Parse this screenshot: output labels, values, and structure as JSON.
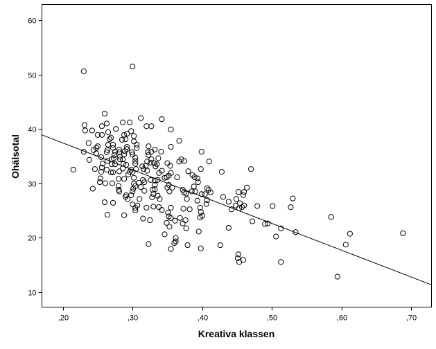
{
  "chart_data": {
    "type": "scatter",
    "title": "",
    "xlabel": "Kreativa klassen",
    "ylabel": "Ohälsotal",
    "xlim": [
      0.17,
      0.729
    ],
    "ylim": [
      7.2,
      62.9
    ],
    "xticks": [
      0.2,
      0.3,
      0.4,
      0.5,
      0.6,
      0.7
    ],
    "xtick_labels": [
      ",20",
      ",30",
      ",40",
      ",50",
      ",60",
      ",70"
    ],
    "yticks": [
      10,
      20,
      30,
      40,
      50,
      60
    ],
    "ytick_labels": [
      "10",
      "20",
      "30",
      "40",
      "50",
      "60"
    ],
    "grid": false,
    "fit_line": {
      "x": [
        0.17,
        0.729
      ],
      "y": [
        38.9,
        11.3
      ]
    },
    "points": [
      [
        0.23,
        50.6
      ],
      [
        0.3,
        51.5
      ],
      [
        0.26,
        42.8
      ],
      [
        0.231,
        40.7
      ],
      [
        0.232,
        39.7
      ],
      [
        0.242,
        39.7
      ],
      [
        0.256,
        40.5
      ],
      [
        0.263,
        41.0
      ],
      [
        0.276,
        40.0
      ],
      [
        0.286,
        41.2
      ],
      [
        0.296,
        41.2
      ],
      [
        0.312,
        42.0
      ],
      [
        0.32,
        40.5
      ],
      [
        0.327,
        40.5
      ],
      [
        0.342,
        41.8
      ],
      [
        0.355,
        39.9
      ],
      [
        0.25,
        38.9
      ],
      [
        0.256,
        38.9
      ],
      [
        0.265,
        39.4
      ],
      [
        0.267,
        38.1
      ],
      [
        0.269,
        38.4
      ],
      [
        0.237,
        37.4
      ],
      [
        0.25,
        36.8
      ],
      [
        0.248,
        36.5
      ],
      [
        0.244,
        36.1
      ],
      [
        0.248,
        35.5
      ],
      [
        0.23,
        35.8
      ],
      [
        0.238,
        34.3
      ],
      [
        0.255,
        34.8
      ],
      [
        0.265,
        37.1
      ],
      [
        0.272,
        37.1
      ],
      [
        0.264,
        36.1
      ],
      [
        0.263,
        35.7
      ],
      [
        0.272,
        36.5
      ],
      [
        0.275,
        35.8
      ],
      [
        0.274,
        35.2
      ],
      [
        0.273,
        34.6
      ],
      [
        0.27,
        34.4
      ],
      [
        0.264,
        34.1
      ],
      [
        0.257,
        33.6
      ],
      [
        0.256,
        32.9
      ],
      [
        0.255,
        32.1
      ],
      [
        0.263,
        32.5
      ],
      [
        0.269,
        32.0
      ],
      [
        0.272,
        32.0
      ],
      [
        0.27,
        33.5
      ],
      [
        0.275,
        33.5
      ],
      [
        0.246,
        32.6
      ],
      [
        0.215,
        32.5
      ],
      [
        0.254,
        30.9
      ],
      [
        0.253,
        30.2
      ],
      [
        0.261,
        30.0
      ],
      [
        0.271,
        30.0
      ],
      [
        0.243,
        29.0
      ],
      [
        0.26,
        26.5
      ],
      [
        0.272,
        26.4
      ],
      [
        0.264,
        24.2
      ],
      [
        0.288,
        24.1
      ],
      [
        0.28,
        30.8
      ],
      [
        0.28,
        29.5
      ],
      [
        0.28,
        28.8
      ],
      [
        0.281,
        28.5
      ],
      [
        0.281,
        36.2
      ],
      [
        0.281,
        35.7
      ],
      [
        0.282,
        34.9
      ],
      [
        0.282,
        34.4
      ],
      [
        0.281,
        32.2
      ],
      [
        0.285,
        38.0
      ],
      [
        0.288,
        38.9
      ],
      [
        0.292,
        39.1
      ],
      [
        0.29,
        38.1
      ],
      [
        0.292,
        36.7
      ],
      [
        0.292,
        36.3
      ],
      [
        0.286,
        34.4
      ],
      [
        0.288,
        35.3
      ],
      [
        0.289,
        35.9
      ],
      [
        0.287,
        33.6
      ],
      [
        0.291,
        33.4
      ],
      [
        0.286,
        32.7
      ],
      [
        0.288,
        30.8
      ],
      [
        0.294,
        31.6
      ],
      [
        0.296,
        32.1
      ],
      [
        0.298,
        32.5
      ],
      [
        0.29,
        27.5
      ],
      [
        0.293,
        27.1
      ],
      [
        0.291,
        27.8
      ],
      [
        0.298,
        39.6
      ],
      [
        0.302,
        38.7
      ],
      [
        0.302,
        37.7
      ],
      [
        0.306,
        37.1
      ],
      [
        0.306,
        36.5
      ],
      [
        0.299,
        35.7
      ],
      [
        0.3,
        35.3
      ],
      [
        0.304,
        34.7
      ],
      [
        0.304,
        34.1
      ],
      [
        0.304,
        33.6
      ],
      [
        0.305,
        32.6
      ],
      [
        0.3,
        32.1
      ],
      [
        0.302,
        31.0
      ],
      [
        0.302,
        29.9
      ],
      [
        0.304,
        29.5
      ],
      [
        0.301,
        29.0
      ],
      [
        0.3,
        28.5
      ],
      [
        0.298,
        27.8
      ],
      [
        0.3,
        26.1
      ],
      [
        0.304,
        25.5
      ],
      [
        0.304,
        25.0
      ],
      [
        0.307,
        25.9
      ],
      [
        0.31,
        27.1
      ],
      [
        0.309,
        30.1
      ],
      [
        0.312,
        29.3
      ],
      [
        0.315,
        30.6
      ],
      [
        0.317,
        30.2
      ],
      [
        0.317,
        28.6
      ],
      [
        0.314,
        33.1
      ],
      [
        0.316,
        32.6
      ],
      [
        0.319,
        33.2
      ],
      [
        0.321,
        32.3
      ],
      [
        0.322,
        35.7
      ],
      [
        0.323,
        35.2
      ],
      [
        0.323,
        36.8
      ],
      [
        0.327,
        35.8
      ],
      [
        0.327,
        34.4
      ],
      [
        0.326,
        33.8
      ],
      [
        0.321,
        34.0
      ],
      [
        0.32,
        25.5
      ],
      [
        0.315,
        23.5
      ],
      [
        0.325,
        23.2
      ],
      [
        0.323,
        18.8
      ],
      [
        0.326,
        30.6
      ],
      [
        0.329,
        28.8
      ],
      [
        0.328,
        27.4
      ],
      [
        0.33,
        28.0
      ],
      [
        0.33,
        25.7
      ],
      [
        0.332,
        36.2
      ],
      [
        0.331,
        33.7
      ],
      [
        0.333,
        33.1
      ],
      [
        0.335,
        33.5
      ],
      [
        0.337,
        34.6
      ],
      [
        0.338,
        31.9
      ],
      [
        0.336,
        30.6
      ],
      [
        0.332,
        30.5
      ],
      [
        0.332,
        29.7
      ],
      [
        0.332,
        28.9
      ],
      [
        0.336,
        27.7
      ],
      [
        0.339,
        27.1
      ],
      [
        0.338,
        25.6
      ],
      [
        0.342,
        25.1
      ],
      [
        0.342,
        32.3
      ],
      [
        0.341,
        35.8
      ],
      [
        0.346,
        31.0
      ],
      [
        0.349,
        31.1
      ],
      [
        0.352,
        31.4
      ],
      [
        0.355,
        31.9
      ],
      [
        0.35,
        33.7
      ],
      [
        0.354,
        33.2
      ],
      [
        0.352,
        29.7
      ],
      [
        0.35,
        29.2
      ],
      [
        0.357,
        29.2
      ],
      [
        0.353,
        28.5
      ],
      [
        0.355,
        25.5
      ],
      [
        0.351,
        24.6
      ],
      [
        0.352,
        23.9
      ],
      [
        0.355,
        23.6
      ],
      [
        0.349,
        22.7
      ],
      [
        0.353,
        22.0
      ],
      [
        0.346,
        20.6
      ],
      [
        0.355,
        17.9
      ],
      [
        0.355,
        36.7
      ],
      [
        0.361,
        23.1
      ],
      [
        0.362,
        19.9
      ],
      [
        0.362,
        19.3
      ],
      [
        0.36,
        19.0
      ],
      [
        0.364,
        31.1
      ],
      [
        0.367,
        34.0
      ],
      [
        0.367,
        37.8
      ],
      [
        0.37,
        34.4
      ],
      [
        0.374,
        34.1
      ],
      [
        0.372,
        28.8
      ],
      [
        0.374,
        28.3
      ],
      [
        0.377,
        28.1
      ],
      [
        0.378,
        27.1
      ],
      [
        0.373,
        25.3
      ],
      [
        0.368,
        23.6
      ],
      [
        0.372,
        22.6
      ],
      [
        0.376,
        23.2
      ],
      [
        0.377,
        21.7
      ],
      [
        0.379,
        18.6
      ],
      [
        0.38,
        32.2
      ],
      [
        0.382,
        25.2
      ],
      [
        0.385,
        28.5
      ],
      [
        0.386,
        31.5
      ],
      [
        0.389,
        31.1
      ],
      [
        0.388,
        29.4
      ],
      [
        0.39,
        28.5
      ],
      [
        0.393,
        26.8
      ],
      [
        0.393,
        30.9
      ],
      [
        0.394,
        30.2
      ],
      [
        0.395,
        21.1
      ],
      [
        0.398,
        32.6
      ],
      [
        0.399,
        35.8
      ],
      [
        0.399,
        28.0
      ],
      [
        0.397,
        25.5
      ],
      [
        0.398,
        24.7
      ],
      [
        0.397,
        23.7
      ],
      [
        0.4,
        24.0
      ],
      [
        0.404,
        28.0
      ],
      [
        0.407,
        29.1
      ],
      [
        0.409,
        28.8
      ],
      [
        0.407,
        26.9
      ],
      [
        0.406,
        26.2
      ],
      [
        0.412,
        28.3
      ],
      [
        0.41,
        34.0
      ],
      [
        0.398,
        18.0
      ],
      [
        0.426,
        18.6
      ],
      [
        0.428,
        32.1
      ],
      [
        0.43,
        27.5
      ],
      [
        0.438,
        26.6
      ],
      [
        0.442,
        25.2
      ],
      [
        0.438,
        21.8
      ],
      [
        0.449,
        27.1
      ],
      [
        0.448,
        25.9
      ],
      [
        0.452,
        28.4
      ],
      [
        0.454,
        26.3
      ],
      [
        0.453,
        25.4
      ],
      [
        0.457,
        25.6
      ],
      [
        0.46,
        25.9
      ],
      [
        0.459,
        27.8
      ],
      [
        0.46,
        28.4
      ],
      [
        0.464,
        29.2
      ],
      [
        0.47,
        32.6
      ],
      [
        0.472,
        23.0
      ],
      [
        0.452,
        16.9
      ],
      [
        0.451,
        16.2
      ],
      [
        0.453,
        15.5
      ],
      [
        0.459,
        15.9
      ],
      [
        0.479,
        25.8
      ],
      [
        0.49,
        22.5
      ],
      [
        0.494,
        22.6
      ],
      [
        0.501,
        25.8
      ],
      [
        0.506,
        20.2
      ],
      [
        0.513,
        21.7
      ],
      [
        0.513,
        15.5
      ],
      [
        0.527,
        25.6
      ],
      [
        0.53,
        27.2
      ],
      [
        0.534,
        21.0
      ],
      [
        0.585,
        23.8
      ],
      [
        0.594,
        12.8
      ],
      [
        0.606,
        18.7
      ],
      [
        0.612,
        20.7
      ],
      [
        0.688,
        20.8
      ]
    ]
  }
}
